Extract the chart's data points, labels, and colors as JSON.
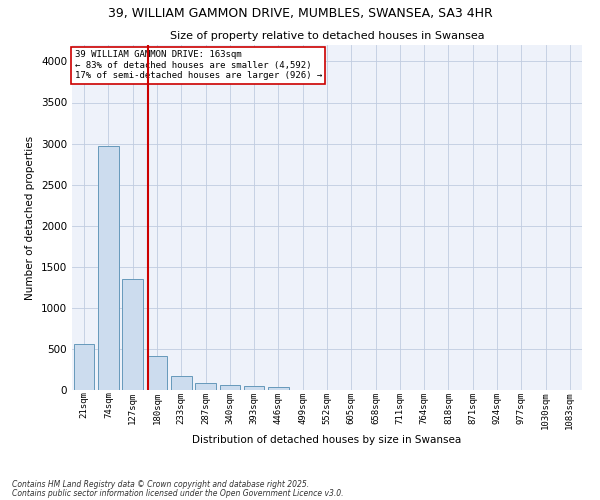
{
  "title_line1": "39, WILLIAM GAMMON DRIVE, MUMBLES, SWANSEA, SA3 4HR",
  "title_line2": "Size of property relative to detached houses in Swansea",
  "xlabel": "Distribution of detached houses by size in Swansea",
  "ylabel": "Number of detached properties",
  "annotation_line1": "39 WILLIAM GAMMON DRIVE: 163sqm",
  "annotation_line2": "← 83% of detached houses are smaller (4,592)",
  "annotation_line3": "17% of semi-detached houses are larger (926) →",
  "bar_color": "#ccdcee",
  "bar_edge_color": "#6699bb",
  "vline_color": "#cc0000",
  "background_color": "#eef2fa",
  "grid_color": "#c0cce0",
  "categories": [
    "21sqm",
    "74sqm",
    "127sqm",
    "180sqm",
    "233sqm",
    "287sqm",
    "340sqm",
    "393sqm",
    "446sqm",
    "499sqm",
    "552sqm",
    "605sqm",
    "658sqm",
    "711sqm",
    "764sqm",
    "818sqm",
    "871sqm",
    "924sqm",
    "977sqm",
    "1030sqm",
    "1083sqm"
  ],
  "values": [
    560,
    2970,
    1350,
    420,
    165,
    90,
    60,
    45,
    35,
    0,
    0,
    0,
    0,
    0,
    0,
    0,
    0,
    0,
    0,
    0,
    0
  ],
  "ylim": [
    0,
    4200
  ],
  "yticks": [
    0,
    500,
    1000,
    1500,
    2000,
    2500,
    3000,
    3500,
    4000
  ],
  "vline_x_index": 2.62,
  "footnote_line1": "Contains HM Land Registry data © Crown copyright and database right 2025.",
  "footnote_line2": "Contains public sector information licensed under the Open Government Licence v3.0."
}
